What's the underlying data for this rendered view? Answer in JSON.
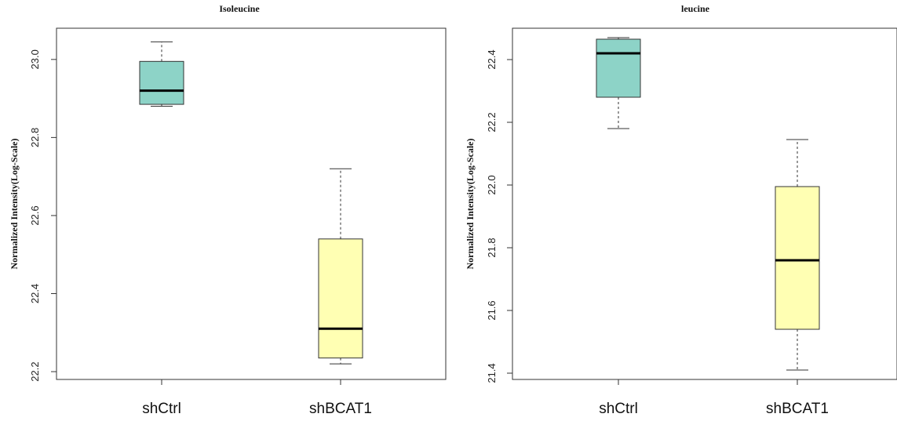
{
  "chart_data": [
    {
      "type": "box",
      "title": "Isoleucine",
      "xlabel": "",
      "ylabel": "Normalized Intensity(Log-Scale)",
      "ylim": [
        22.18,
        23.08
      ],
      "yticks": [
        "22.2",
        "22.4",
        "22.6",
        "22.8",
        "23.0"
      ],
      "categories": [
        "shCtrl",
        "shBCAT1"
      ],
      "boxes": [
        {
          "category": "shCtrl",
          "min": 22.88,
          "q1": 22.885,
          "median": 22.92,
          "q3": 22.995,
          "max": 23.045,
          "color": "#8dd3c7"
        },
        {
          "category": "shBCAT1",
          "min": 22.22,
          "q1": 22.235,
          "median": 22.31,
          "q3": 22.54,
          "max": 22.72,
          "color": "#ffffb3"
        }
      ],
      "grid": false
    },
    {
      "type": "box",
      "title": "leucine",
      "xlabel": "",
      "ylabel": "Normalized Intensity(Log-Scale)",
      "ylim": [
        21.38,
        22.5
      ],
      "yticks": [
        "21.4",
        "21.6",
        "21.8",
        "22.0",
        "22.2",
        "22.4"
      ],
      "categories": [
        "shCtrl",
        "shBCAT1"
      ],
      "boxes": [
        {
          "category": "shCtrl",
          "min": 22.18,
          "q1": 22.28,
          "median": 22.42,
          "q3": 22.465,
          "max": 22.47,
          "color": "#8dd3c7"
        },
        {
          "category": "shBCAT1",
          "min": 21.41,
          "q1": 21.54,
          "median": 21.76,
          "q3": 21.995,
          "max": 22.145,
          "color": "#ffffb3"
        }
      ],
      "grid": false
    }
  ]
}
